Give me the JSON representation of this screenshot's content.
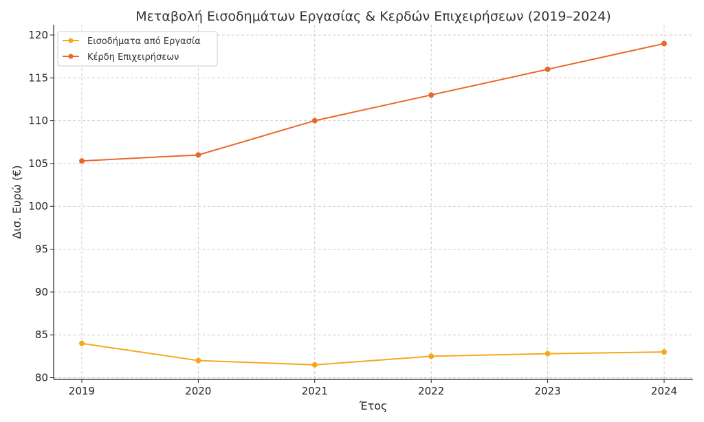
{
  "chart_data": {
    "type": "line",
    "title": "Μεταβολή Εισοδημάτων Εργασίας & Κερδών Επιχειρήσεων (2019–2024)",
    "xlabel": "Έτος",
    "ylabel": "Δισ. Ευρώ (€)",
    "categories": [
      "2019",
      "2020",
      "2021",
      "2022",
      "2023",
      "2024"
    ],
    "y_ticks": [
      80,
      85,
      90,
      95,
      100,
      105,
      110,
      115,
      120
    ],
    "ylim": [
      79.8,
      121.2
    ],
    "grid": true,
    "legend_position": "top-left",
    "series": [
      {
        "name": "Εισοδήματα από Εργασία",
        "color": "#f5a81c",
        "values": [
          84.0,
          82.0,
          81.5,
          82.5,
          82.8,
          83.0
        ]
      },
      {
        "name": "Κέρδη Επιχειρήσεων",
        "color": "#e8682a",
        "values": [
          105.3,
          106.0,
          110.0,
          113.0,
          116.0,
          119.0
        ]
      }
    ]
  }
}
